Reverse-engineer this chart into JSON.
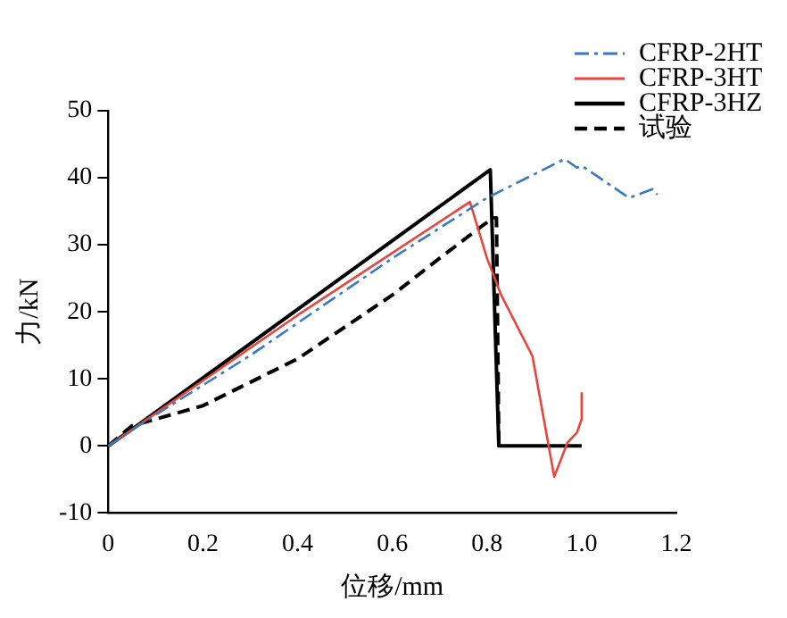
{
  "chart_data": {
    "type": "line",
    "xlabel": "位移/mm",
    "ylabel": "力/kN",
    "xlim": [
      0,
      1.2
    ],
    "xticks": [
      0,
      {
        "value": 0.2,
        "label": "0.2"
      },
      {
        "value": 0.4,
        "label": "0.4"
      },
      {
        "value": 0.6,
        "label": "0.6"
      },
      {
        "value": 0.8,
        "label": "0.8"
      },
      {
        "value": 1,
        "label": "1.0"
      },
      {
        "value": 1.2,
        "label": "1.2"
      }
    ],
    "ylim": [
      -10,
      50
    ],
    "yticks": [
      -10,
      0,
      10,
      20,
      30,
      40,
      50
    ],
    "grid": false,
    "legend": "top right",
    "marker": "none",
    "series": [
      {
        "name": "CFRP-2HT",
        "color": "#3a78c2",
        "line_style": "dashdot",
        "x": [
          0,
          0.07,
          0.3,
          0.6,
          0.8,
          0.964,
          0.99,
          1.0,
          1.1,
          1.15,
          1.16
        ],
        "values": [
          0,
          3.3,
          13.5,
          28,
          37,
          42.8,
          41.5,
          41.8,
          37,
          38.3,
          37.5
        ]
      },
      {
        "name": "CFRP-3HT",
        "color": "#e8453c",
        "line_style": "solid",
        "x": [
          0,
          0.07,
          0.4,
          0.764,
          0.8,
          0.83,
          0.896,
          0.942,
          0.97,
          0.99,
          1.0,
          1.0
        ],
        "values": [
          0,
          3.4,
          19.5,
          36.4,
          28,
          22.5,
          13.4,
          -4.6,
          0.5,
          2,
          4,
          8
        ]
      },
      {
        "name": "CFRP-3HZ",
        "color": "#000000",
        "line_style": "solid",
        "x": [
          0,
          0.07,
          0.807,
          0.825,
          1.0
        ],
        "values": [
          0,
          3.5,
          41.2,
          0,
          0
        ]
      },
      {
        "name": "试验",
        "color": "#000000",
        "line_style": "dashed",
        "x": [
          0,
          0.05,
          0.2,
          0.4,
          0.6,
          0.7,
          0.795,
          0.815,
          0.82,
          0.825
        ],
        "values": [
          0,
          3,
          6,
          13,
          22.5,
          28,
          33.1,
          34,
          34,
          0
        ]
      }
    ]
  }
}
